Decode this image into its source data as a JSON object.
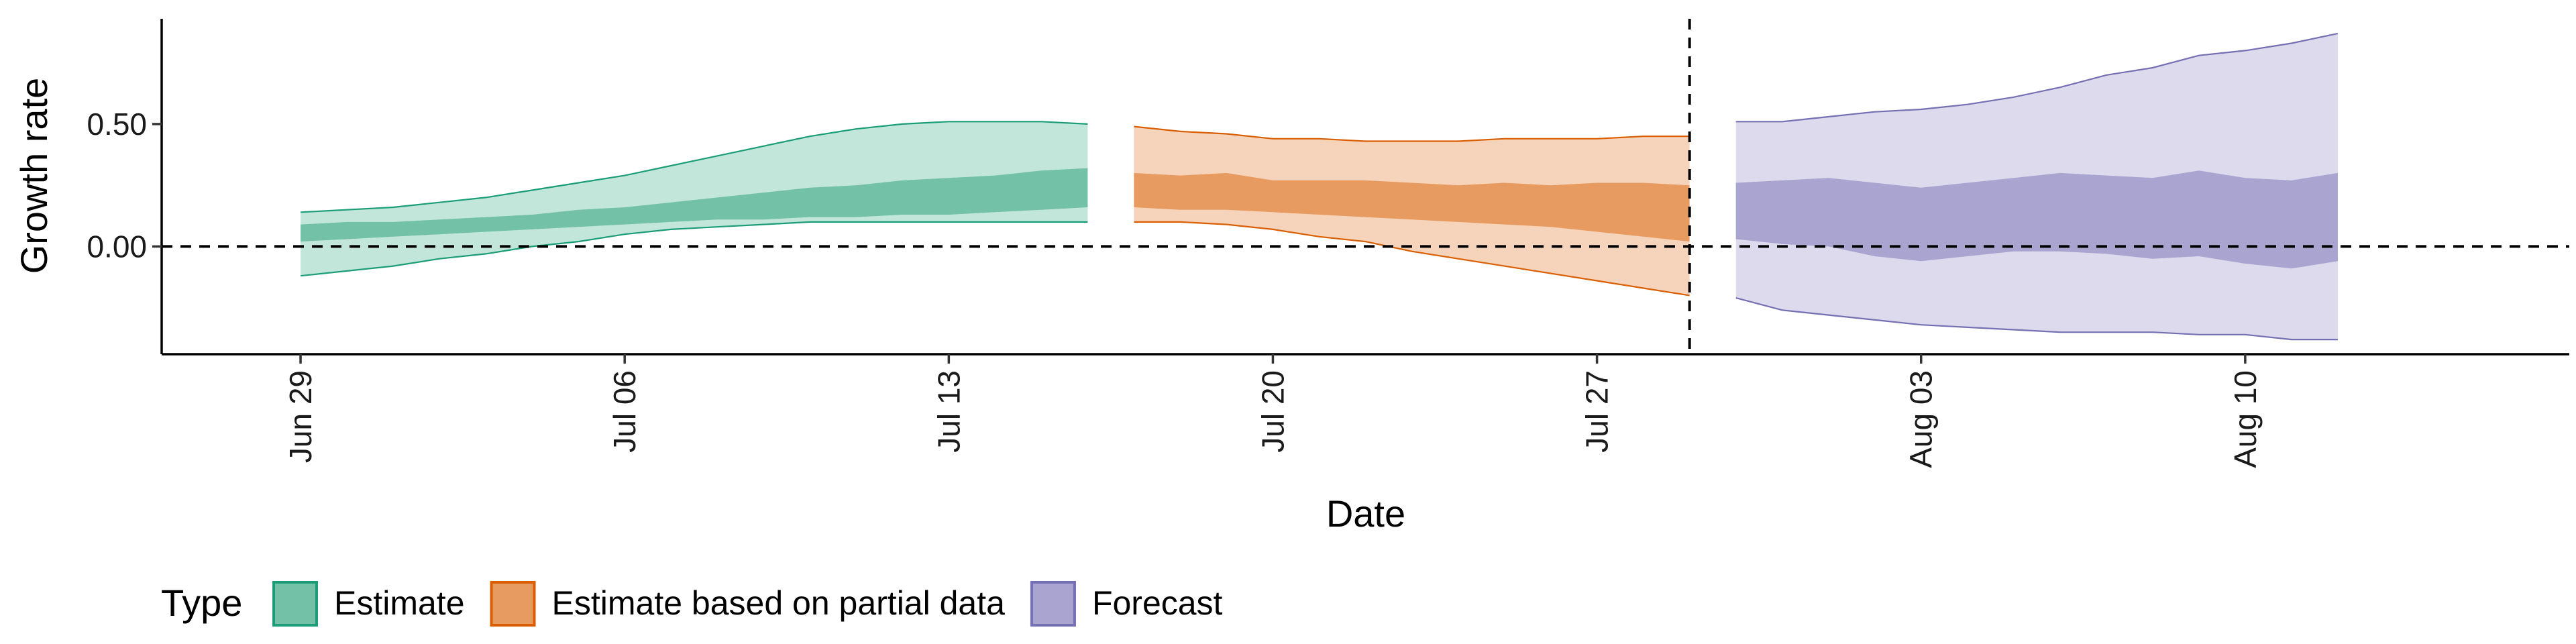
{
  "chart_data": {
    "type": "area",
    "xlabel": "Date",
    "ylabel": "Growth rate",
    "xlim": [
      "2020-06-26",
      "2020-08-17"
    ],
    "ylim": [
      -0.44,
      0.93
    ],
    "x_ticks": [
      "2020-06-29",
      "2020-07-06",
      "2020-07-13",
      "2020-07-20",
      "2020-07-27",
      "2020-08-03",
      "2020-08-10"
    ],
    "x_tick_labels": [
      "Jun 29",
      "Jul 06",
      "Jul 13",
      "Jul 20",
      "Jul 27",
      "Aug 03",
      "Aug 10"
    ],
    "y_ticks": [
      0.0,
      0.5
    ],
    "y_tick_labels": [
      "0.00",
      "0.50"
    ],
    "reference_lines": {
      "horizontal_y": 0.0,
      "vertical_x": "2020-07-29"
    },
    "grid": false,
    "legend": {
      "title": "Type",
      "position": "bottom-left",
      "entries": [
        {
          "label": "Estimate",
          "color": "#73c2a8",
          "border": "#1b9e77"
        },
        {
          "label": "Estimate based on partial data",
          "color": "#e89b60",
          "border": "#d95f02"
        },
        {
          "label": "Forecast",
          "color": "#a9a4d0",
          "border": "#7570b3"
        }
      ]
    },
    "series": [
      {
        "name": "Estimate",
        "fill_outer": "#c3e6da",
        "fill_inner": "#73c2a8",
        "edge": "#1b9e77",
        "x": [
          "2020-06-29",
          "2020-06-30",
          "2020-07-01",
          "2020-07-02",
          "2020-07-03",
          "2020-07-04",
          "2020-07-05",
          "2020-07-06",
          "2020-07-07",
          "2020-07-08",
          "2020-07-09",
          "2020-07-10",
          "2020-07-11",
          "2020-07-12",
          "2020-07-13",
          "2020-07-14",
          "2020-07-15",
          "2020-07-16"
        ],
        "outer_lower": [
          -0.12,
          -0.1,
          -0.08,
          -0.05,
          -0.03,
          0.0,
          0.02,
          0.05,
          0.07,
          0.08,
          0.09,
          0.1,
          0.1,
          0.1,
          0.1,
          0.1,
          0.1,
          0.1
        ],
        "inner_lower": [
          0.02,
          0.03,
          0.04,
          0.05,
          0.06,
          0.07,
          0.08,
          0.09,
          0.1,
          0.11,
          0.11,
          0.12,
          0.12,
          0.13,
          0.13,
          0.14,
          0.15,
          0.16
        ],
        "inner_upper": [
          0.09,
          0.1,
          0.1,
          0.11,
          0.12,
          0.13,
          0.15,
          0.16,
          0.18,
          0.2,
          0.22,
          0.24,
          0.25,
          0.27,
          0.28,
          0.29,
          0.31,
          0.32
        ],
        "outer_upper": [
          0.14,
          0.15,
          0.16,
          0.18,
          0.2,
          0.23,
          0.26,
          0.29,
          0.33,
          0.37,
          0.41,
          0.45,
          0.48,
          0.5,
          0.51,
          0.51,
          0.51,
          0.5
        ]
      },
      {
        "name": "Estimate based on partial data",
        "fill_outer": "#f6d4bb",
        "fill_inner": "#e89b60",
        "edge": "#d95f02",
        "x": [
          "2020-07-17",
          "2020-07-18",
          "2020-07-19",
          "2020-07-20",
          "2020-07-21",
          "2020-07-22",
          "2020-07-23",
          "2020-07-24",
          "2020-07-25",
          "2020-07-26",
          "2020-07-27",
          "2020-07-28",
          "2020-07-29"
        ],
        "outer_lower": [
          0.1,
          0.1,
          0.09,
          0.07,
          0.04,
          0.02,
          -0.02,
          -0.05,
          -0.08,
          -0.11,
          -0.14,
          -0.17,
          -0.2
        ],
        "inner_lower": [
          0.16,
          0.15,
          0.15,
          0.14,
          0.13,
          0.12,
          0.11,
          0.1,
          0.09,
          0.08,
          0.06,
          0.04,
          0.02
        ],
        "inner_upper": [
          0.3,
          0.29,
          0.3,
          0.27,
          0.27,
          0.27,
          0.26,
          0.25,
          0.26,
          0.25,
          0.26,
          0.26,
          0.25
        ],
        "outer_upper": [
          0.49,
          0.47,
          0.46,
          0.44,
          0.44,
          0.43,
          0.43,
          0.43,
          0.44,
          0.44,
          0.44,
          0.45,
          0.45
        ]
      },
      {
        "name": "Forecast",
        "fill_outer": "#dcdaec",
        "fill_inner": "#a9a4d0",
        "edge": "#7570b3",
        "x": [
          "2020-07-30",
          "2020-07-31",
          "2020-08-01",
          "2020-08-02",
          "2020-08-03",
          "2020-08-04",
          "2020-08-05",
          "2020-08-06",
          "2020-08-07",
          "2020-08-08",
          "2020-08-09",
          "2020-08-10",
          "2020-08-11",
          "2020-08-12"
        ],
        "outer_lower": [
          -0.21,
          -0.26,
          -0.28,
          -0.3,
          -0.32,
          -0.33,
          -0.34,
          -0.35,
          -0.35,
          -0.35,
          -0.36,
          -0.36,
          -0.38,
          -0.38
        ],
        "inner_lower": [
          0.03,
          0.01,
          0.0,
          -0.04,
          -0.06,
          -0.04,
          -0.02,
          -0.02,
          -0.03,
          -0.05,
          -0.04,
          -0.07,
          -0.09,
          -0.06
        ],
        "inner_upper": [
          0.26,
          0.27,
          0.28,
          0.26,
          0.24,
          0.26,
          0.28,
          0.3,
          0.29,
          0.28,
          0.31,
          0.28,
          0.27,
          0.3
        ],
        "outer_upper": [
          0.51,
          0.51,
          0.53,
          0.55,
          0.56,
          0.58,
          0.61,
          0.65,
          0.7,
          0.73,
          0.78,
          0.8,
          0.83,
          0.87
        ]
      }
    ]
  }
}
